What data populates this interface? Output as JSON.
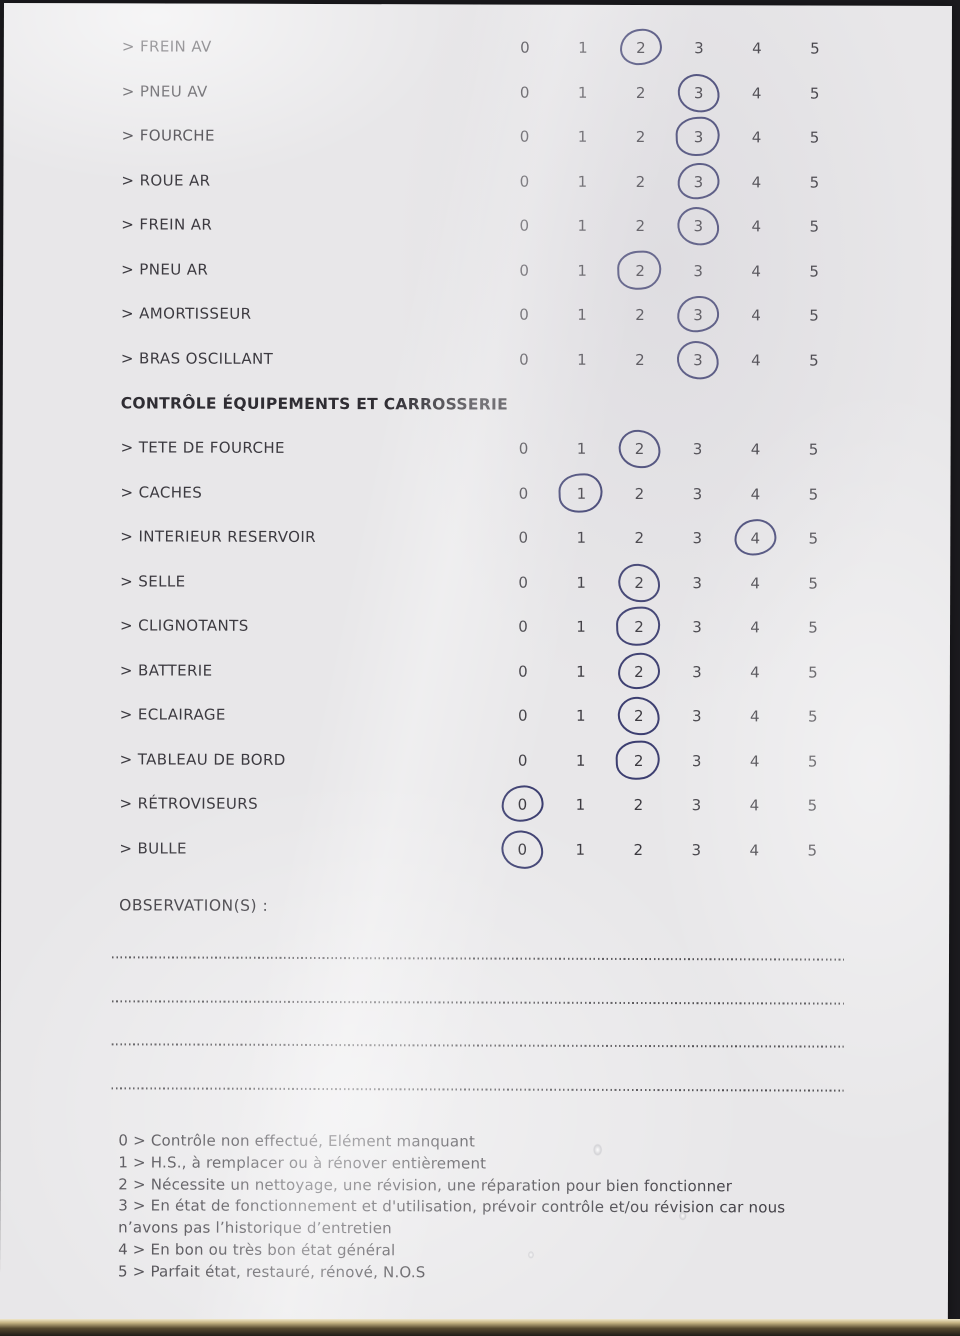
{
  "colors": {
    "ink": "#2c3065",
    "text": "#3c3a40",
    "paper": "#e8e7e9"
  },
  "checklist": {
    "scale": [
      "0",
      "1",
      "2",
      "3",
      "4",
      "5"
    ],
    "sections": [
      {
        "title": "",
        "rows": [
          {
            "label": "> FREIN AV",
            "selected": 2
          },
          {
            "label": "> PNEU AV",
            "selected": 3
          },
          {
            "label": "> FOURCHE",
            "selected": 3
          },
          {
            "label": "> ROUE AR",
            "selected": 3
          },
          {
            "label": "> FREIN AR",
            "selected": 3
          },
          {
            "label": "> PNEU AR",
            "selected": 2
          },
          {
            "label": "> AMORTISSEUR",
            "selected": 3
          },
          {
            "label": "> BRAS OSCILLANT",
            "selected": 3
          }
        ]
      },
      {
        "title": "CONTRÔLE ÉQUIPEMENTS ET CARROSSERIE",
        "rows": [
          {
            "label": "> TETE DE FOURCHE",
            "selected": 2
          },
          {
            "label": "> CACHES",
            "selected": 1
          },
          {
            "label": "> INTERIEUR RESERVOIR",
            "selected": 4
          },
          {
            "label": "> SELLE",
            "selected": 2
          },
          {
            "label": "> CLIGNOTANTS",
            "selected": 2
          },
          {
            "label": "> BATTERIE",
            "selected": 2
          },
          {
            "label": "> ECLAIRAGE",
            "selected": 2
          },
          {
            "label": "> TABLEAU DE BORD",
            "selected": 2
          },
          {
            "label": "> RÉTROVISEURS",
            "selected": 0
          },
          {
            "label": "> BULLE",
            "selected": 0
          }
        ]
      }
    ]
  },
  "observations": {
    "label": "OBSERVATION(S) :",
    "line_count": 4
  },
  "legend": {
    "items": [
      "0 > Contrôle non effectué, Elément manquant",
      "1 > H.S., à remplacer ou à rénover entièrement",
      "2 > Nécessite un nettoyage, une révision, une réparation pour bien fonctionner",
      "3 > En état de fonctionnement et d'utilisation, prévoir contrôle et/ou révision car nous n’avons pas l’historique d’entretien",
      "4 > En bon ou très bon état général",
      "5 > Parfait état, restauré, rénové, N.O.S"
    ]
  }
}
